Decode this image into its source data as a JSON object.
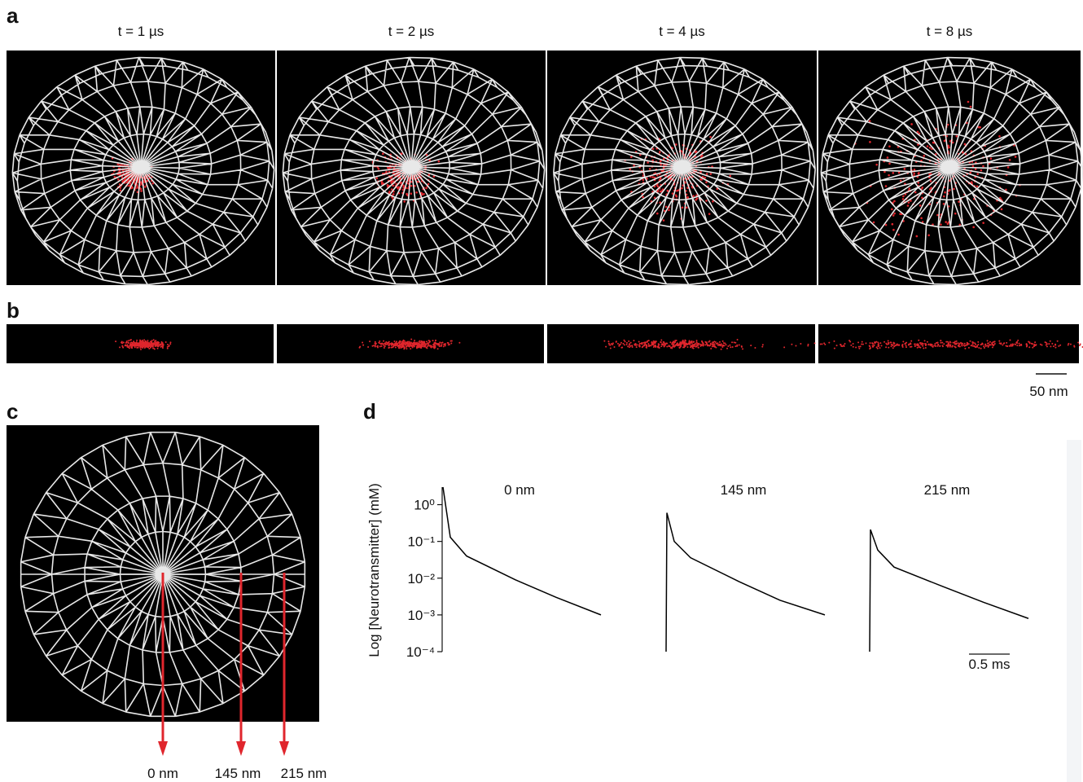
{
  "figure": {
    "panels": {
      "a": {
        "label": "a",
        "times": [
          "t = 1 µs",
          "t = 2 µs",
          "t = 4 µs",
          "t = 8 µs"
        ]
      },
      "b": {
        "label": "b",
        "scalebar": "50 nm"
      },
      "c": {
        "label": "c",
        "positions": [
          "0 nm",
          "145 nm",
          "215 nm"
        ]
      },
      "d": {
        "label": "d"
      }
    }
  },
  "chart_data": {
    "type": "line",
    "ylabel": "Log [Neurotransmitter] (mM)",
    "log_y": true,
    "ylim": [
      0.0001,
      3
    ],
    "yticks": [
      {
        "value": 1,
        "label": "10⁰"
      },
      {
        "value": 0.1,
        "label": "10⁻¹"
      },
      {
        "value": 0.01,
        "label": "10⁻²"
      },
      {
        "value": 0.001,
        "label": "10⁻³"
      },
      {
        "value": 0.0001,
        "label": "10⁻⁴"
      }
    ],
    "x": [
      0,
      0.01,
      0.1,
      0.3,
      0.9,
      1.4,
      1.95
    ],
    "series": [
      {
        "name": "0 nm",
        "color": "#000000",
        "values": [
          null,
          3,
          0.13,
          0.04,
          0.009,
          0.003,
          0.001
        ]
      },
      {
        "name": "145 nm",
        "color": "#000000",
        "values": [
          0.0001,
          0.6,
          0.1,
          0.036,
          0.008,
          0.0025,
          0.001
        ]
      },
      {
        "name": "215 nm",
        "color": "#000000",
        "values": [
          0.0001,
          0.21,
          0.058,
          0.02,
          0.0059,
          0.0022,
          0.0008
        ]
      }
    ],
    "scalebar": {
      "value": 0.5,
      "label": "0.5 ms"
    }
  }
}
